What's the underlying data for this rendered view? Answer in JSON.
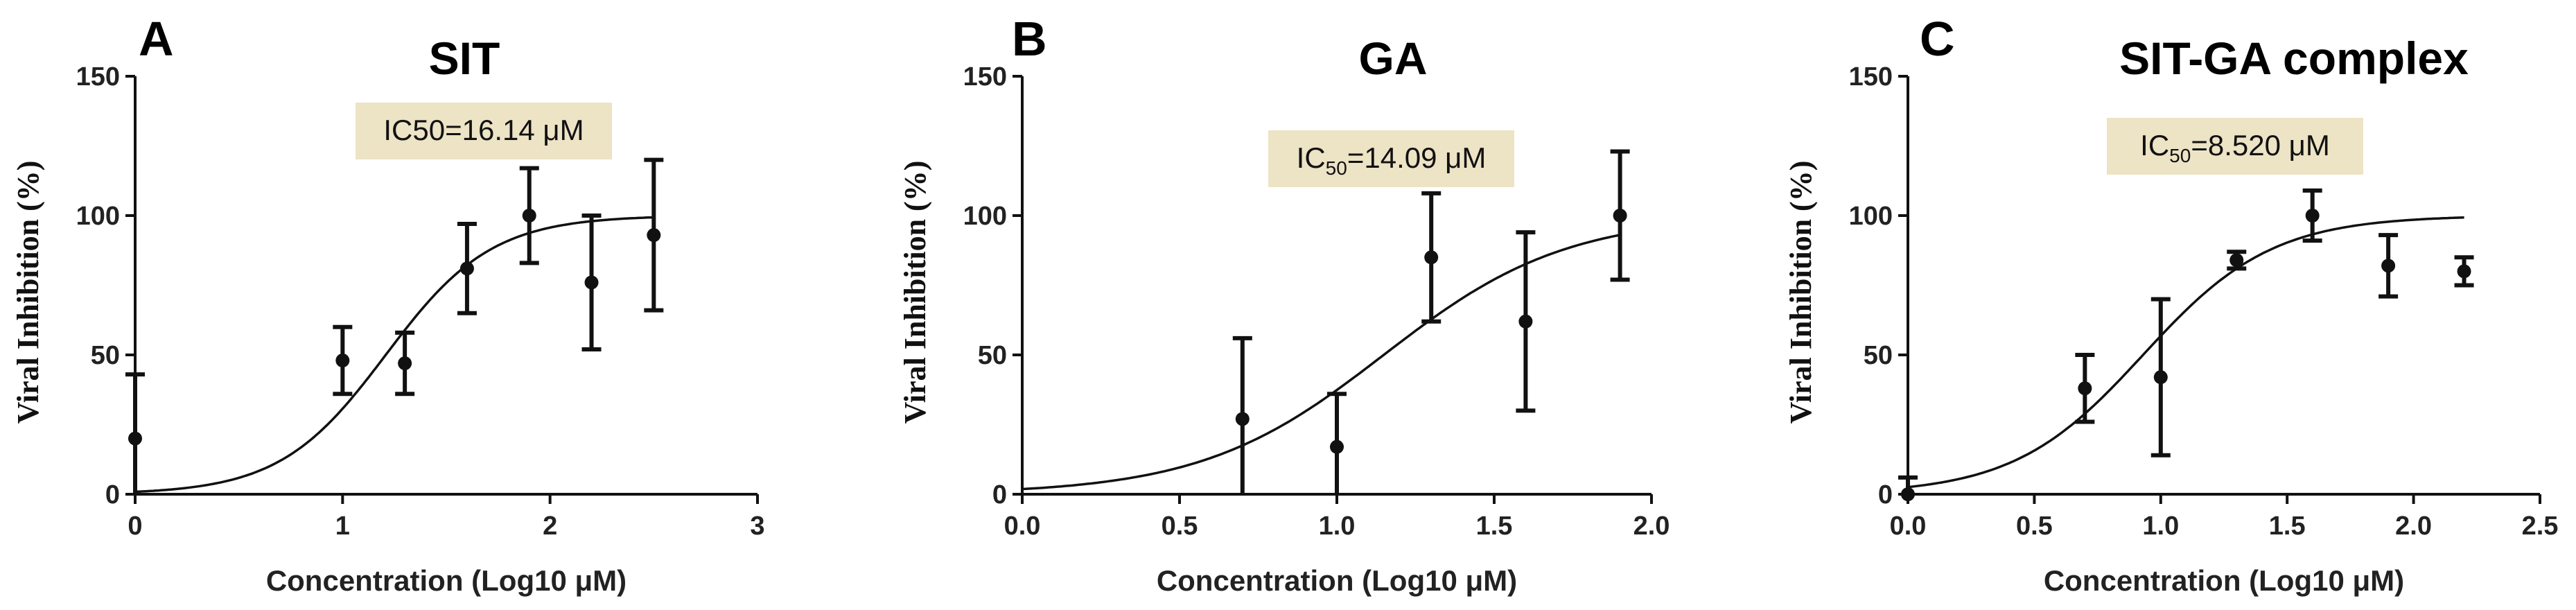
{
  "chart_data": [
    {
      "type": "scatter",
      "panel": "A",
      "title": "SIT",
      "xlabel": "Concentration (Log10 μM)",
      "ylabel": "Viral Inhibition (%)",
      "xlim": [
        0,
        3
      ],
      "ylim": [
        0,
        150
      ],
      "xticks": [
        0,
        1,
        2,
        3
      ],
      "xtick_labels": [
        "0",
        "1",
        "2",
        "3"
      ],
      "yticks": [
        0,
        50,
        100,
        150
      ],
      "ytick_labels": [
        "0",
        "50",
        "100",
        "150"
      ],
      "annotation": {
        "prefix": "IC50",
        "sub": "",
        "value": "=16.14 μM"
      },
      "points": [
        {
          "x": 0,
          "y": 20,
          "err": 23
        },
        {
          "x": 1.0,
          "y": 48,
          "err": 12
        },
        {
          "x": 1.3,
          "y": 47,
          "err": 11
        },
        {
          "x": 1.6,
          "y": 81,
          "err": 16
        },
        {
          "x": 1.9,
          "y": 100,
          "err": 17
        },
        {
          "x": 2.2,
          "y": 76,
          "err": 24
        },
        {
          "x": 2.5,
          "y": 93,
          "err": 27
        }
      ],
      "fit": {
        "bottom": 0,
        "top": 100,
        "logIC50": 1.208,
        "hill": 1.7,
        "x_range": [
          0,
          2.5
        ]
      }
    },
    {
      "type": "scatter",
      "panel": "B",
      "title": "GA",
      "xlabel": "Concentration (Log10 μM)",
      "ylabel": "Viral Inhibition (%)",
      "xlim": [
        0,
        2.0
      ],
      "ylim": [
        0,
        150
      ],
      "xticks": [
        0,
        0.5,
        1.0,
        1.5,
        2.0
      ],
      "xtick_labels": [
        "0.0",
        "0.5",
        "1.0",
        "1.5",
        "2.0"
      ],
      "yticks": [
        0,
        50,
        100,
        150
      ],
      "ytick_labels": [
        "0",
        "50",
        "100",
        "150"
      ],
      "annotation": {
        "prefix": "IC",
        "sub": "50",
        "value": "=14.09 μM"
      },
      "points": [
        {
          "x": 0.7,
          "y": 27,
          "err": 29
        },
        {
          "x": 1.0,
          "y": 17,
          "err": 19
        },
        {
          "x": 1.3,
          "y": 85,
          "err": 23
        },
        {
          "x": 1.6,
          "y": 62,
          "err": 32
        },
        {
          "x": 1.9,
          "y": 100,
          "err": 23
        }
      ],
      "fit": {
        "bottom": 0,
        "top": 100,
        "logIC50": 1.149,
        "hill": 1.5,
        "x_range": [
          0,
          1.9
        ]
      }
    },
    {
      "type": "scatter",
      "panel": "C",
      "title": "SIT-GA complex",
      "xlabel": "Concentration (Log10 μM)",
      "ylabel": "Viral Inhibition (%)",
      "xlim": [
        0,
        2.5
      ],
      "ylim": [
        0,
        150
      ],
      "xticks": [
        0,
        0.5,
        1.0,
        1.5,
        2.0,
        2.5
      ],
      "xtick_labels": [
        "0.0",
        "0.5",
        "1.0",
        "1.5",
        "2.0",
        "2.5"
      ],
      "yticks": [
        0,
        50,
        100,
        150
      ],
      "ytick_labels": [
        "0",
        "50",
        "100",
        "150"
      ],
      "annotation": {
        "prefix": "IC",
        "sub": "50",
        "value": "=8.520 μM"
      },
      "points": [
        {
          "x": 0,
          "y": 0,
          "err": 6
        },
        {
          "x": 0.7,
          "y": 38,
          "err": 12
        },
        {
          "x": 1.0,
          "y": 42,
          "err": 28
        },
        {
          "x": 1.3,
          "y": 84,
          "err": 3
        },
        {
          "x": 1.6,
          "y": 100,
          "err": 9
        },
        {
          "x": 1.9,
          "y": 82,
          "err": 11
        },
        {
          "x": 2.2,
          "y": 80,
          "err": 5
        }
      ],
      "fit": {
        "bottom": 0,
        "top": 100,
        "logIC50": 0.93,
        "hill": 1.7,
        "x_range": [
          0,
          2.2
        ]
      }
    }
  ]
}
